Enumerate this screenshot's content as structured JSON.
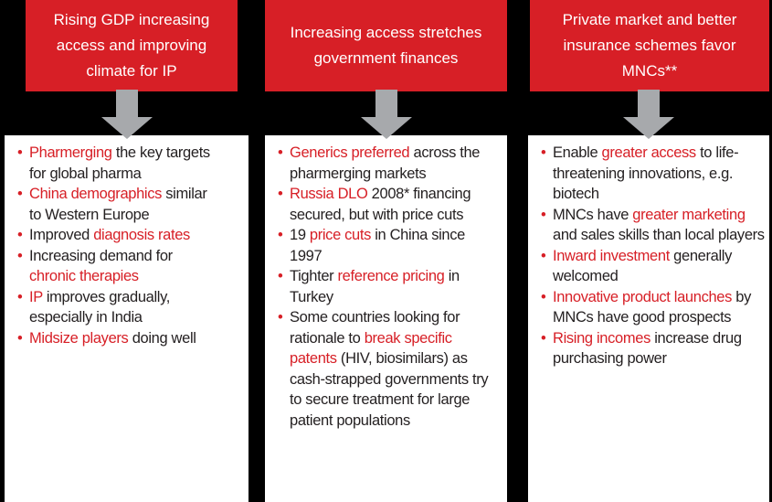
{
  "columns": [
    {
      "title": "Rising GDP increasing access and improving climate for IP",
      "bullets": [
        [
          {
            "text": "Pharmerging",
            "color": "#d71f26"
          },
          {
            "text": " the key targets for global pharma",
            "color": "#231f20"
          }
        ],
        [
          {
            "text": "China demographics",
            "color": "#d71f26"
          },
          {
            "text": " similar to Western Europe",
            "color": "#231f20"
          }
        ],
        [
          {
            "text": "Improved ",
            "color": "#231f20"
          },
          {
            "text": "diagnosis rates",
            "color": "#d71f26"
          }
        ],
        [
          {
            "text": "Increasing demand for ",
            "color": "#231f20"
          },
          {
            "text": "chronic therapies",
            "color": "#d71f26"
          }
        ],
        [
          {
            "text": "IP",
            "color": "#d71f26"
          },
          {
            "text": " improves gradually, especially in India",
            "color": "#231f20"
          }
        ],
        [
          {
            "text": "Midsize players",
            "color": "#d71f26"
          },
          {
            "text": " doing well",
            "color": "#231f20"
          }
        ]
      ]
    },
    {
      "title": "Increasing access stretches government finances",
      "bullets": [
        [
          {
            "text": "Generics preferred",
            "color": "#d71f26"
          },
          {
            "text": " across the pharmerging markets",
            "color": "#231f20"
          }
        ],
        [
          {
            "text": "Russia DLO",
            "color": "#d71f26"
          },
          {
            "text": " 2008* financing secured, but with price cuts",
            "color": "#231f20"
          }
        ],
        [
          {
            "text": "19 ",
            "color": "#231f20"
          },
          {
            "text": "price cuts",
            "color": "#d71f26"
          },
          {
            "text": " in China since 1997",
            "color": "#231f20"
          }
        ],
        [
          {
            "text": "Tighter ",
            "color": "#231f20"
          },
          {
            "text": "reference pricing",
            "color": "#d71f26"
          },
          {
            "text": " in Turkey",
            "color": "#231f20"
          }
        ],
        [
          {
            "text": "Some countries looking for rationale to ",
            "color": "#231f20"
          },
          {
            "text": "break specific patents",
            "color": "#d71f26"
          },
          {
            "text": " (HIV, biosimilars) as cash-strapped governments try to secure treatment for large patient populations",
            "color": "#231f20"
          }
        ]
      ]
    },
    {
      "title": "Private market and better insurance schemes favor MNCs**",
      "bullets": [
        [
          {
            "text": "Enable ",
            "color": "#231f20"
          },
          {
            "text": "greater access",
            "color": "#d71f26"
          },
          {
            "text": " to life-threatening innovations, e.g. biotech",
            "color": "#231f20"
          }
        ],
        [
          {
            "text": "MNCs have ",
            "color": "#231f20"
          },
          {
            "text": "greater marketing",
            "color": "#d71f26"
          },
          {
            "text": " and sales skills than local players",
            "color": "#231f20"
          }
        ],
        [
          {
            "text": "Inward investment",
            "color": "#d71f26"
          },
          {
            "text": " generally welcomed",
            "color": "#231f20"
          }
        ],
        [
          {
            "text": "Innovative product launches",
            "color": "#d71f26"
          },
          {
            "text": " by MNCs have good prospects",
            "color": "#231f20"
          }
        ],
        [
          {
            "text": "Rising incomes",
            "color": "#d71f26"
          },
          {
            "text": " increase drug purchasing power",
            "color": "#231f20"
          }
        ]
      ]
    }
  ]
}
